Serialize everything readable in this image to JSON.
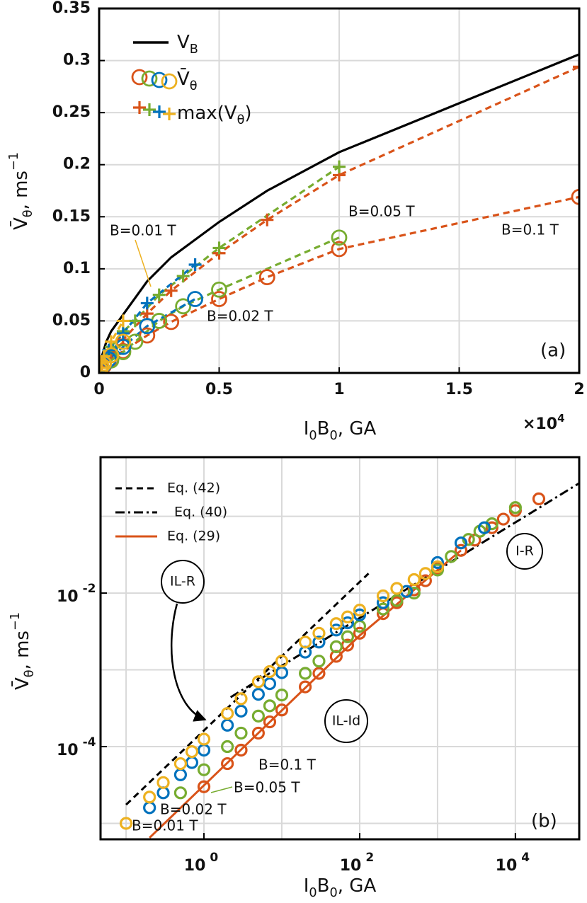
{
  "chart_data": [
    {
      "type": "line",
      "panel_label": "(a)",
      "x_label": [
        {
          "text": "I",
          "pos": "base"
        },
        {
          "text": "0",
          "pos": "sub"
        },
        {
          "text": "B",
          "pos": "base"
        },
        {
          "text": "0",
          "pos": "sub"
        },
        {
          "text": ", GA",
          "pos": "base"
        }
      ],
      "y_label": [
        {
          "text": "V̄",
          "pos": "base"
        },
        {
          "text": "θ",
          "pos": "sub"
        },
        {
          "text": ",  ms",
          "pos": "base"
        },
        {
          "text": "−1",
          "pos": "sup"
        }
      ],
      "x_multiplier": [
        {
          "text": "×10",
          "pos": "base"
        },
        {
          "text": "4",
          "pos": "sup"
        }
      ],
      "xlim": [
        0,
        2
      ],
      "ylim": [
        0,
        0.35
      ],
      "xticks": [
        0,
        0.5,
        1,
        1.5,
        2
      ],
      "yticks": [
        0,
        0.05,
        0.1,
        0.15,
        0.2,
        0.25,
        0.3,
        0.35
      ],
      "grid": true,
      "legend": [
        [
          {
            "text": "V",
            "pos": "base"
          },
          {
            "text": "B",
            "pos": "sub"
          }
        ],
        [
          {
            "text": "V̄",
            "pos": "base"
          },
          {
            "text": "θ",
            "pos": "sub"
          }
        ],
        [
          {
            "text": "max(V",
            "pos": "base"
          },
          {
            "text": "θ",
            "pos": "sub"
          },
          {
            "text": ")",
            "pos": "base"
          }
        ]
      ],
      "reference": {
        "color": "#000000",
        "x": [
          0,
          0.01,
          0.03,
          0.05,
          0.1,
          0.2,
          0.3,
          0.5,
          0.7,
          1,
          2
        ],
        "values": [
          0,
          0.015,
          0.03,
          0.04,
          0.056,
          0.088,
          0.111,
          0.145,
          0.175,
          0.212,
          0.306
        ]
      },
      "series": [
        {
          "name": "B=0.1 T",
          "color": "#d95319",
          "x": [
            0.01,
            0.02,
            0.05,
            0.1,
            0.2,
            0.3,
            0.5,
            0.7,
            1,
            2
          ],
          "mean": [
            0.004,
            0.007,
            0.013,
            0.021,
            0.036,
            0.049,
            0.071,
            0.092,
            0.119,
            0.169
          ],
          "max": [
            0.007,
            0.012,
            0.02,
            0.032,
            0.057,
            0.079,
            0.115,
            0.147,
            0.19,
            0.294
          ]
        },
        {
          "name": "B=0.05 T",
          "color": "#77ac30",
          "x": [
            0.05,
            0.1,
            0.15,
            0.25,
            0.35,
            0.5,
            1
          ],
          "mean": [
            0.012,
            0.02,
            0.03,
            0.05,
            0.064,
            0.08,
            0.13
          ],
          "max": [
            0.025,
            0.04,
            0.05,
            0.075,
            0.093,
            0.12,
            0.198
          ]
        },
        {
          "name": "B=0.02 T",
          "color": "#0072bd",
          "x": [
            0.02,
            0.04,
            0.1,
            0.2,
            0.4
          ],
          "mean": [
            0.008,
            0.013,
            0.025,
            0.045,
            0.071
          ],
          "max": [
            0.014,
            0.022,
            0.038,
            0.067,
            0.104
          ]
        },
        {
          "name": "B=0.01 T",
          "color": "#edb120",
          "x": [
            0.005,
            0.01,
            0.02,
            0.05,
            0.1
          ],
          "mean": [
            0.003,
            0.006,
            0.009,
            0.017,
            0.03
          ],
          "max": [
            0.005,
            0.01,
            0.016,
            0.03,
            0.05
          ]
        }
      ]
    },
    {
      "type": "scatter",
      "panel_label": "(b)",
      "log_x": true,
      "log_y": true,
      "x_label": [
        {
          "text": "I",
          "pos": "base"
        },
        {
          "text": "0",
          "pos": "sub"
        },
        {
          "text": "B",
          "pos": "base"
        },
        {
          "text": "0",
          "pos": "sub"
        },
        {
          "text": ", GA",
          "pos": "base"
        }
      ],
      "y_label": [
        {
          "text": "V̄",
          "pos": "base"
        },
        {
          "text": "θ",
          "pos": "sub"
        },
        {
          "text": ",  ms",
          "pos": "base"
        },
        {
          "text": "−1",
          "pos": "sup"
        }
      ],
      "xlim": [
        0.047,
        66000
      ],
      "ylim": [
        6.2e-06,
        0.59
      ],
      "xticks": [
        {
          "value": 1,
          "label": "10",
          "exponent": "0"
        },
        {
          "value": 100,
          "label": "10",
          "exponent": "2"
        },
        {
          "value": 10000,
          "label": "10",
          "exponent": "4"
        }
      ],
      "yticks": [
        {
          "value": 0.01,
          "label": "10",
          "exponent": "-2"
        },
        {
          "value": 0.0001,
          "label": "10",
          "exponent": "-4"
        }
      ],
      "grid_x": [
        0.1,
        1,
        10,
        100,
        1000,
        10000
      ],
      "grid_y": [
        1e-05,
        0.0001,
        0.001,
        0.01,
        0.1
      ],
      "regions": [
        "IL-R",
        "I-R",
        "IL-Id"
      ],
      "lines": [
        {
          "name": "Eq. (42)",
          "color": "#000000",
          "dash": "dashed",
          "x": [
            0.1,
            130
          ],
          "values": [
            1.75e-05,
            0.018
          ]
        },
        {
          "name": "Eq. (40)",
          "color": "#000000",
          "dash": "dashdot",
          "x": [
            2.2,
            66000
          ],
          "values": [
            0.00044,
            0.27
          ]
        },
        {
          "name": "Eq. (29)",
          "color": "#d95319",
          "dash": "solid",
          "x": [
            0.2,
            100,
            2000
          ],
          "values": [
            6.5e-06,
            0.0028,
            0.036
          ]
        }
      ],
      "series": [
        {
          "name": "B=0.1 T",
          "color": "#d95319",
          "x": [
            1,
            2,
            3,
            5,
            7,
            10,
            20,
            30,
            50,
            70,
            100,
            200,
            300,
            500,
            700,
            1000,
            2000,
            3000,
            5000,
            7000,
            10000,
            20000
          ],
          "values": [
            3e-05,
            6e-05,
            9e-05,
            0.00015,
            0.00021,
            0.0003,
            0.0006,
            0.0009,
            0.0015,
            0.0021,
            0.003,
            0.0054,
            0.0075,
            0.011,
            0.0145,
            0.021,
            0.036,
            0.049,
            0.071,
            0.092,
            0.119,
            0.169
          ]
        },
        {
          "name": "B=0.05 T",
          "color": "#77ac30",
          "x": [
            0.5,
            1,
            2,
            3,
            5,
            7,
            10,
            20,
            30,
            50,
            70,
            100,
            200,
            300,
            500,
            1000,
            1500,
            2500,
            3500,
            5000,
            10000
          ],
          "values": [
            2.5e-05,
            5e-05,
            0.0001,
            0.00015,
            0.00025,
            0.00034,
            0.00047,
            0.0009,
            0.0013,
            0.002,
            0.0027,
            0.0037,
            0.0062,
            0.008,
            0.01,
            0.02,
            0.03,
            0.05,
            0.064,
            0.08,
            0.13
          ]
        },
        {
          "name": "B=0.02 T",
          "color": "#0072bd",
          "x": [
            0.2,
            0.3,
            0.5,
            0.7,
            1,
            2,
            3,
            5,
            7,
            10,
            20,
            30,
            50,
            70,
            100,
            200,
            400,
            1000,
            2000,
            4000
          ],
          "values": [
            1.6e-05,
            2.5e-05,
            4.3e-05,
            6.2e-05,
            9e-05,
            0.00019,
            0.00029,
            0.00048,
            0.00066,
            0.00092,
            0.0017,
            0.0023,
            0.0033,
            0.0041,
            0.0052,
            0.0075,
            0.0105,
            0.025,
            0.045,
            0.071
          ]
        },
        {
          "name": "B=0.01 T",
          "color": "#edb120",
          "x": [
            0.1,
            0.2,
            0.3,
            0.5,
            0.7,
            1,
            2,
            3,
            5,
            7,
            10,
            20,
            30,
            50,
            70,
            100,
            200,
            300,
            500,
            700,
            1000
          ],
          "values": [
            1e-05,
            2.2e-05,
            3.4e-05,
            6e-05,
            8.6e-05,
            0.000125,
            0.00027,
            0.00042,
            0.0007,
            0.00095,
            0.0013,
            0.0023,
            0.003,
            0.004,
            0.0049,
            0.006,
            0.0092,
            0.0115,
            0.015,
            0.018,
            0.022
          ]
        }
      ]
    }
  ]
}
